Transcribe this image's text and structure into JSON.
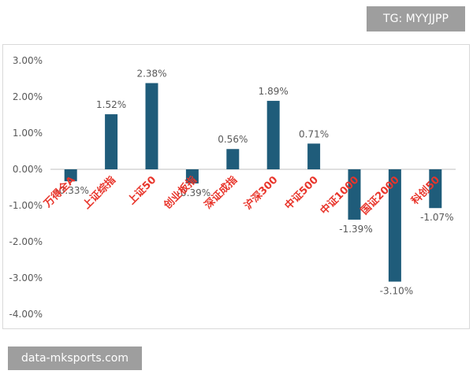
{
  "watermarks": {
    "top": "TG: MYYJJPP",
    "bottom": "data-mksports.com"
  },
  "chart_data": {
    "type": "bar",
    "categories": [
      "万得全A",
      "上证综指",
      "上证50",
      "创业板指",
      "深证成指",
      "沪深300",
      "中证500",
      "中证1000",
      "国证2000",
      "科创50"
    ],
    "values": [
      -0.33,
      1.52,
      2.38,
      -0.39,
      0.56,
      1.89,
      0.71,
      -1.39,
      -3.1,
      -1.07
    ],
    "data_labels": [
      "-0.33%",
      "1.52%",
      "2.38%",
      "-0.39%",
      "0.56%",
      "1.89%",
      "0.71%",
      "-1.39%",
      "-3.10%",
      "-1.07%"
    ],
    "y_ticks": [
      "3.00%",
      "2.00%",
      "1.00%",
      "0.00%",
      "-1.00%",
      "-2.00%",
      "-3.00%",
      "-4.00%"
    ],
    "ylim": [
      -4,
      3
    ],
    "title": "",
    "xlabel": "",
    "ylabel": "",
    "grid": false,
    "bar_color": "#1f5c7a",
    "category_label_color": "#e8352b"
  }
}
